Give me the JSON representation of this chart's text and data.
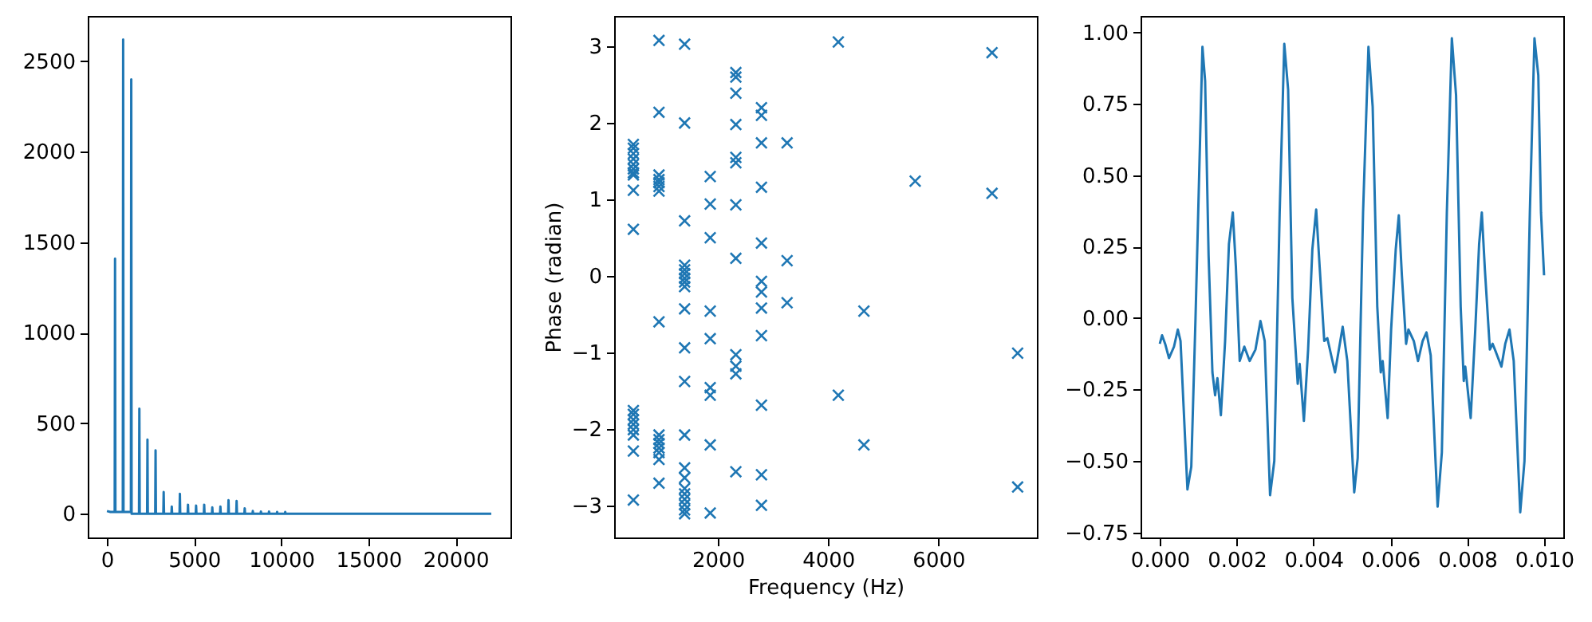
{
  "chart_data": [
    {
      "type": "line",
      "color": "#1f77b4",
      "xlim": [
        -1102,
        23152
      ],
      "ylim": [
        -131,
        2750
      ],
      "xticks": [
        0,
        5000,
        10000,
        15000,
        20000
      ],
      "yticks": [
        0,
        500,
        1000,
        1500,
        2000,
        2500
      ],
      "x": [
        0,
        200,
        445,
        465,
        485,
        910,
        930,
        950,
        1375,
        1395,
        1415,
        1840,
        1860,
        1880,
        2305,
        2325,
        2345,
        2770,
        2790,
        2810,
        3235,
        3255,
        3275,
        3700,
        3720,
        3740,
        4165,
        4185,
        4205,
        4630,
        4650,
        4670,
        5095,
        5115,
        5135,
        5560,
        5580,
        5600,
        6025,
        6045,
        6065,
        6490,
        6510,
        6530,
        6955,
        6975,
        6995,
        7420,
        7440,
        7460,
        7885,
        7905,
        7925,
        8350,
        8370,
        8390,
        8815,
        8835,
        8855,
        9280,
        9300,
        9320,
        9745,
        9765,
        9785,
        10210,
        10230,
        10250,
        22050
      ],
      "values": [
        15,
        10,
        10,
        1410,
        10,
        10,
        2620,
        10,
        10,
        2400,
        0,
        0,
        580,
        0,
        0,
        410,
        0,
        0,
        350,
        0,
        0,
        120,
        0,
        0,
        40,
        0,
        0,
        110,
        0,
        0,
        50,
        0,
        0,
        45,
        0,
        0,
        50,
        0,
        0,
        35,
        0,
        0,
        40,
        0,
        0,
        75,
        0,
        0,
        70,
        0,
        0,
        30,
        0,
        0,
        15,
        0,
        0,
        12,
        0,
        0,
        12,
        0,
        0,
        10,
        0,
        0,
        10,
        0,
        0
      ]
    },
    {
      "type": "scatter",
      "color": "#1f77b4",
      "marker": "cross",
      "xlabel": "Frequency (Hz)",
      "ylabel": "Phase (radian)",
      "xlim": [
        116,
        7789
      ],
      "ylim": [
        -3.42,
        3.4
      ],
      "xticks": [
        2000,
        4000,
        6000
      ],
      "yticks": [
        {
          "value": -3,
          "label": "−3"
        },
        {
          "value": -2,
          "label": "−2"
        },
        {
          "value": -1,
          "label": "−1"
        },
        0,
        1,
        2,
        3
      ],
      "x": [
        465,
        465,
        465,
        465,
        465,
        465,
        465,
        465,
        465,
        465,
        465,
        465,
        465,
        465,
        465,
        465,
        465,
        465,
        930,
        930,
        930,
        930,
        930,
        930,
        930,
        930,
        930,
        930,
        930,
        930,
        930,
        930,
        930,
        1395,
        1395,
        1395,
        1395,
        1395,
        1395,
        1395,
        1395,
        1395,
        1395,
        1395,
        1395,
        1395,
        1395,
        1395,
        1395,
        1395,
        1395,
        1395,
        1395,
        1395,
        1860,
        1860,
        1860,
        1860,
        1860,
        1860,
        1860,
        1860,
        1860,
        2325,
        2325,
        2325,
        2325,
        2325,
        2325,
        2325,
        2325,
        2325,
        2325,
        2325,
        2325,
        2790,
        2790,
        2790,
        2790,
        2790,
        2790,
        2790,
        2790,
        2790,
        2790,
        2790,
        2790,
        3255,
        3255,
        3255,
        4185,
        4185,
        4650,
        4650,
        5580,
        6975,
        6975,
        7440,
        7440
      ],
      "values": [
        1.72,
        1.67,
        1.6,
        1.53,
        1.46,
        1.4,
        1.35,
        1.32,
        1.12,
        0.61,
        -1.76,
        -1.81,
        -1.88,
        -1.94,
        -2.01,
        -2.08,
        -2.29,
        -2.93,
        3.08,
        2.14,
        1.32,
        1.26,
        1.22,
        1.17,
        1.11,
        -0.6,
        -2.08,
        -2.14,
        -2.19,
        -2.25,
        -2.31,
        -2.4,
        -2.71,
        3.03,
        2,
        0.72,
        0.14,
        0.08,
        0.03,
        -0.03,
        -0.08,
        -0.14,
        -0.43,
        -0.94,
        -1.38,
        -2.08,
        -2.51,
        -2.64,
        -2.78,
        -2.85,
        -2.92,
        -2.99,
        -3.06,
        -3.11,
        1.3,
        0.94,
        0.5,
        -0.46,
        -0.82,
        -1.46,
        -1.56,
        -2.21,
        -3.1,
        2.66,
        2.6,
        2.39,
        1.98,
        1.55,
        1.48,
        0.93,
        0.23,
        -1.03,
        -1.18,
        -1.28,
        -2.56,
        2.2,
        2.1,
        1.74,
        1.16,
        0.43,
        -0.07,
        -0.21,
        -0.42,
        -0.78,
        -1.69,
        -2.6,
        -3,
        1.74,
        0.2,
        -0.35,
        3.06,
        -1.56,
        -0.46,
        -2.21,
        1.24,
        2.92,
        1.08,
        -1.01,
        -2.76
      ]
    },
    {
      "type": "line",
      "color": "#1f77b4",
      "xlim": [
        -0.0005,
        0.0105
      ],
      "ylim": [
        -0.768,
        1.058
      ],
      "xticks": [
        {
          "value": 0,
          "label": "0.000"
        },
        {
          "value": 0.002,
          "label": "0.002"
        },
        {
          "value": 0.004,
          "label": "0.004"
        },
        {
          "value": 0.006,
          "label": "0.006"
        },
        {
          "value": 0.008,
          "label": "0.008"
        },
        {
          "value": 0.01,
          "label": "0.010"
        }
      ],
      "yticks": [
        {
          "value": -0.75,
          "label": "−0.75"
        },
        {
          "value": -0.5,
          "label": "−0.50"
        },
        {
          "value": -0.25,
          "label": "−0.25"
        },
        {
          "value": 0,
          "label": "0.00"
        },
        {
          "value": 0.25,
          "label": "0.25"
        },
        {
          "value": 0.5,
          "label": "0.50"
        },
        {
          "value": 0.75,
          "label": "0.75"
        },
        {
          "value": 1,
          "label": "1.00"
        }
      ],
      "x": [
        0,
        6e-05,
        0.00014,
        0.00024,
        0.00037,
        0.00047,
        0.00054,
        0.00072,
        0.00082,
        0.00093,
        0.00111,
        0.00118,
        0.00127,
        0.00137,
        0.00144,
        0.0015,
        0.00159,
        0.0017,
        0.0018,
        0.0019,
        0.00198,
        0.00208,
        0.0022,
        0.00234,
        0.00249,
        0.00262,
        0.00273,
        0.00287,
        0.00298,
        0.00312,
        0.00324,
        0.00334,
        0.00345,
        0.00359,
        0.00364,
        0.00375,
        0.00386,
        0.00397,
        0.00407,
        0.00416,
        0.00428,
        0.00436,
        0.00456,
        0.00476,
        0.00488,
        0.00506,
        0.00515,
        0.00529,
        0.00543,
        0.00554,
        0.00566,
        0.00575,
        0.0058,
        0.00593,
        0.00602,
        0.00614,
        0.00622,
        0.0063,
        0.00641,
        0.00647,
        0.00661,
        0.00672,
        0.00684,
        0.00694,
        0.00705,
        0.00723,
        0.00734,
        0.00747,
        0.0076,
        0.00771,
        0.00783,
        0.00791,
        0.00795,
        0.00809,
        0.00821,
        0.00831,
        0.00838,
        0.00846,
        0.00859,
        0.00866,
        0.00875,
        0.00889,
        0.00899,
        0.0091,
        0.00921,
        0.00938,
        0.00949,
        0.00963,
        0.00975,
        0.00985,
        0.00992,
        0.01
      ],
      "values": [
        -0.09,
        -0.06,
        -0.09,
        -0.14,
        -0.1,
        -0.04,
        -0.08,
        -0.6,
        -0.52,
        0,
        0.95,
        0.83,
        0.22,
        -0.19,
        -0.27,
        -0.21,
        -0.34,
        -0.08,
        0.26,
        0.37,
        0.18,
        -0.15,
        -0.1,
        -0.15,
        -0.11,
        -0.01,
        -0.08,
        -0.62,
        -0.5,
        0.37,
        0.96,
        0.8,
        0.07,
        -0.23,
        -0.16,
        -0.36,
        -0.11,
        0.24,
        0.38,
        0.18,
        -0.08,
        -0.07,
        -0.19,
        -0.03,
        -0.15,
        -0.61,
        -0.49,
        0.37,
        0.95,
        0.74,
        0.04,
        -0.19,
        -0.15,
        -0.35,
        -0.04,
        0.24,
        0.36,
        0.15,
        -0.09,
        -0.04,
        -0.08,
        -0.15,
        -0.08,
        -0.05,
        -0.13,
        -0.66,
        -0.47,
        0.37,
        0.98,
        0.78,
        0.04,
        -0.22,
        -0.17,
        -0.35,
        -0.04,
        0.26,
        0.37,
        0.17,
        -0.11,
        -0.09,
        -0.12,
        -0.17,
        -0.09,
        -0.04,
        -0.15,
        -0.68,
        -0.5,
        0.37,
        0.98,
        0.85,
        0.37,
        0.15
      ]
    }
  ]
}
